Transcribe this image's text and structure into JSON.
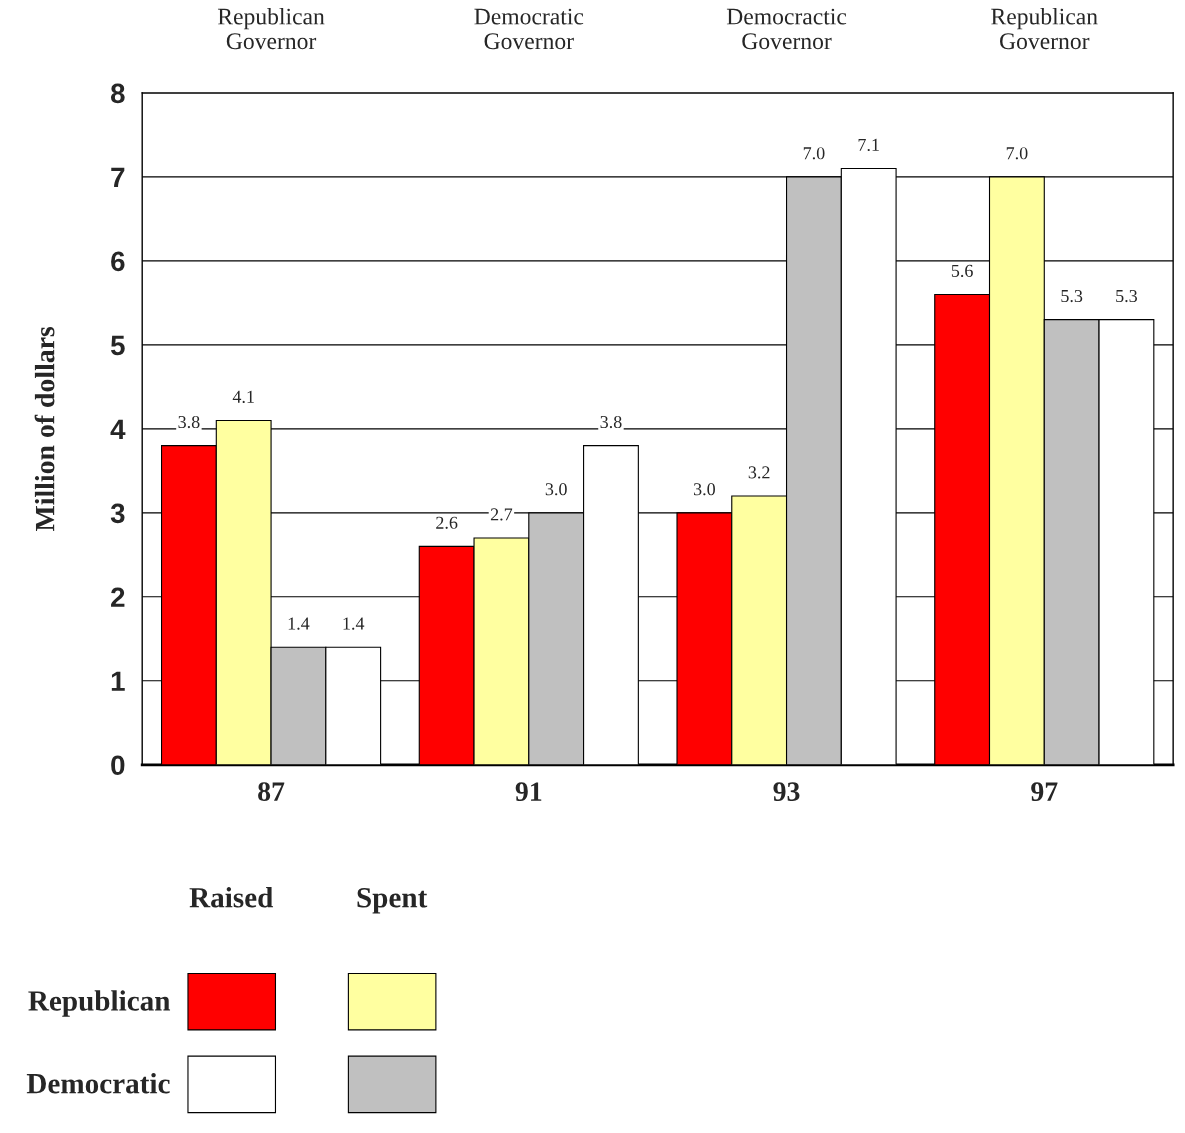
{
  "chart_data": {
    "type": "bar",
    "ylabel": "Million of dollars",
    "categories": [
      "87",
      "91",
      "93",
      "97"
    ],
    "series": [
      {
        "name": "Republican",
        "color": "#ff0000",
        "values": [
          3.8,
          2.6,
          3.0,
          5.6
        ],
        "value_labels": [
          "3.8",
          "2.6",
          "3.0",
          "5.6"
        ]
      },
      {
        "color": "#ffffa0",
        "values": [
          4.1,
          2.7,
          3.2,
          7.0
        ],
        "value_labels": [
          "4.1",
          "2.7",
          "3.2",
          "7.0"
        ]
      },
      {
        "color": "#c0c0c0",
        "values": [
          1.4,
          3.0,
          7.0,
          5.3
        ],
        "value_labels": [
          "1.4",
          "3.0",
          "7.0",
          "5.3"
        ]
      },
      {
        "name": "Democratic",
        "color": "#ffffff",
        "values": [
          1.4,
          3.8,
          7.1,
          5.3
        ],
        "value_labels": [
          "1.4",
          "3.8",
          "7.1",
          "5.3"
        ]
      }
    ],
    "ylim": [
      0,
      8
    ],
    "yticks": [
      0,
      1,
      2,
      3,
      4,
      5,
      6,
      7,
      8
    ],
    "grid": "y",
    "legend": "bottom left",
    "annotations": [
      "Republican\nGovernor",
      "Democratic\nGovernor",
      "Democractic\nGovernor",
      "Republican\nGovernor",
      "Raised",
      "Spent"
    ]
  }
}
